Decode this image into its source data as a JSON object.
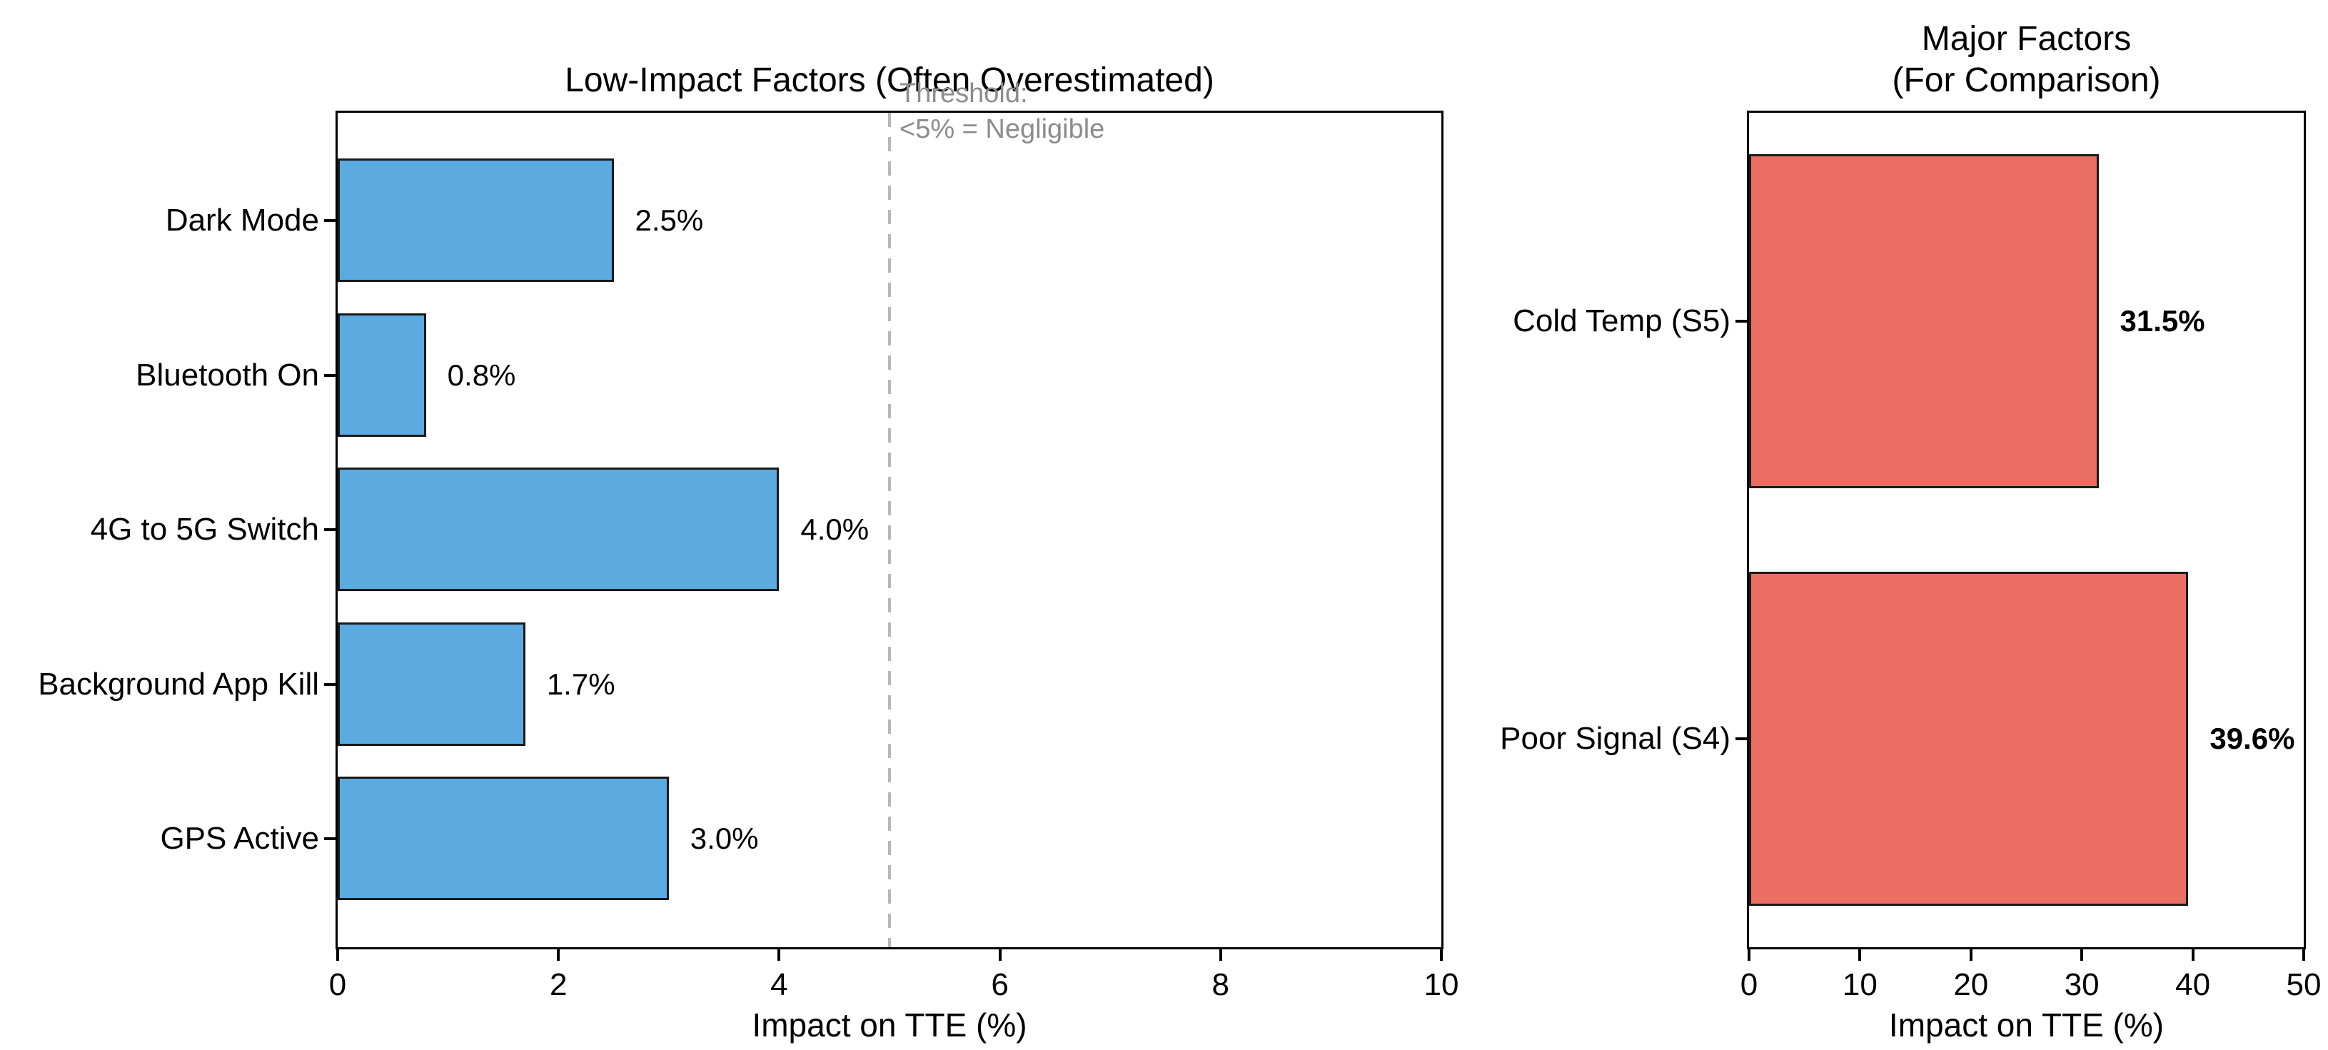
{
  "figure": {
    "background": "#ffffff"
  },
  "chart_data": [
    {
      "type": "bar",
      "orientation": "horizontal",
      "title": "Low-Impact Factors (Often Overestimated)",
      "xlabel": "Impact on TTE (%)",
      "xlim": [
        0,
        10
      ],
      "xticks": [
        "0",
        "2",
        "4",
        "6",
        "8",
        "10"
      ],
      "categories": [
        "Dark Mode",
        "Bluetooth On",
        "4G to 5G Switch",
        "Background App Kill",
        "GPS Active"
      ],
      "values": [
        2.5,
        0.8,
        4.0,
        1.7,
        3.0
      ],
      "value_labels": [
        "2.5%",
        "0.8%",
        "4.0%",
        "1.7%",
        "3.0%"
      ],
      "bar_color": "#5BAAE0",
      "bar_edge_color": "#1a1a1a",
      "grid": false,
      "threshold": {
        "x": 5,
        "label": "Threshold:\n<5% = Negligible",
        "line_color": "#b8b8b8",
        "text_color": "#8c8c8c"
      }
    },
    {
      "type": "bar",
      "orientation": "horizontal",
      "title": "Major Factors\n(For Comparison)",
      "xlabel": "Impact on TTE (%)",
      "xlim": [
        0,
        50
      ],
      "xticks": [
        "0",
        "10",
        "20",
        "30",
        "40",
        "50"
      ],
      "categories": [
        "Cold Temp (S5)",
        "Poor Signal (S4)"
      ],
      "values": [
        31.5,
        39.6
      ],
      "value_labels": [
        "31.5%",
        "39.6%"
      ],
      "bar_color": "#EA6F62",
      "bar_edge_color": "#1a1a1a",
      "grid": false
    }
  ]
}
